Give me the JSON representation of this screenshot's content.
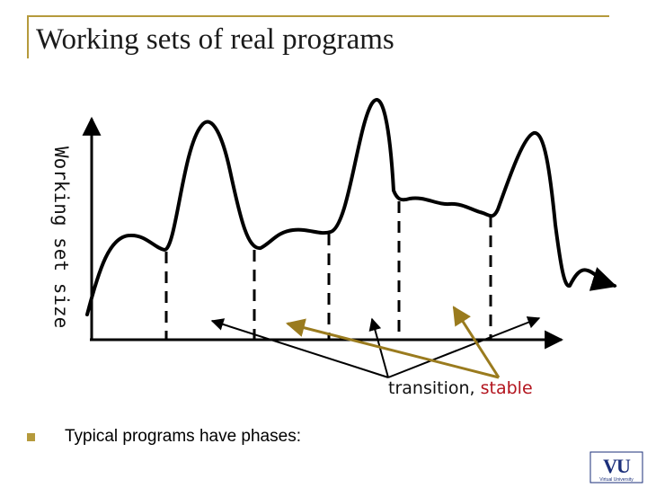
{
  "slide": {
    "title": "Working sets of real programs",
    "y_axis_label": "Working set size",
    "annotation_transition": "transition, ",
    "annotation_stable": "stable",
    "bullet_text": "Typical programs have phases:",
    "logo_text": "VU",
    "logo_caption": "Virtual University"
  },
  "colors": {
    "accent": "#b59a3c",
    "curve": "#000000",
    "transition_arrows": "#000000",
    "stable_arrows": "#9a7b1e",
    "stable_text": "#b3141e",
    "logo": "#1b2f7a"
  },
  "icons": {
    "bullet": "square-bullet-icon",
    "logo": "vu-logo-icon"
  }
}
